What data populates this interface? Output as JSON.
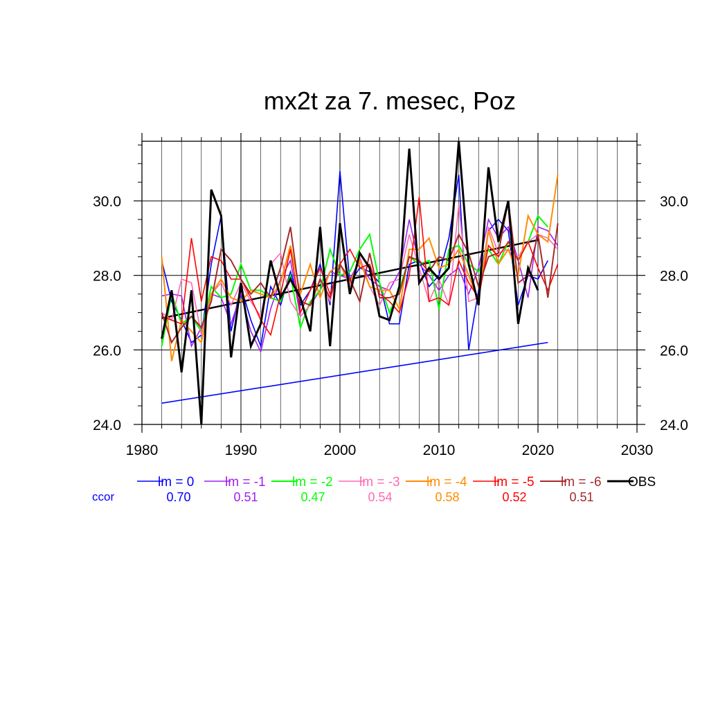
{
  "chart_data": {
    "type": "line",
    "title": "mx2t za 7. mesec, Poz",
    "xlabel": "",
    "ylabel": "",
    "xlim": [
      1980,
      2030
    ],
    "ylim": [
      24.0,
      31.6
    ],
    "x_ticks": [
      1980,
      1990,
      2000,
      2010,
      2020,
      2030
    ],
    "x_tick_labels": [
      "1980",
      "1990",
      "2000",
      "2010",
      "2020",
      "2030"
    ],
    "y_ticks": [
      24.0,
      26.0,
      28.0,
      30.0
    ],
    "y_tick_labels": [
      "24.0",
      "26.0",
      "28.0",
      "30.0"
    ],
    "y_labels_both_sides": true,
    "grid": true,
    "legend_placement": "below",
    "ccor_label": "ccor",
    "ccor_color": "#0000ff",
    "series": [
      {
        "name": "lm = 0",
        "color": "#0000ff",
        "width": 1.6,
        "ccor": "0.70",
        "x0": 1982,
        "values": [
          28.4,
          27.3,
          26.8,
          26.2,
          26.4,
          28.3,
          29.6,
          26.5,
          27.7,
          26.8,
          26.1,
          27.7,
          27.2,
          28.1,
          27.2,
          27.6,
          28.3,
          27.2,
          30.8,
          27.8,
          28.2,
          28.1,
          27.8,
          26.7,
          26.7,
          28.3,
          28.4,
          27.7,
          28.0,
          29.0,
          30.7,
          26.0,
          27.6,
          29.2,
          29.5,
          29.2,
          27.2,
          28.0,
          27.9,
          28.4
        ]
      },
      {
        "name": "lm = -1",
        "color": "#a020f0",
        "width": 1.6,
        "ccor": "0.51",
        "x0": 1982,
        "values": [
          27.45,
          27.5,
          27.45,
          26.1,
          26.6,
          27.5,
          27.4,
          26.7,
          27.5,
          26.5,
          25.95,
          27.1,
          27.9,
          28.4,
          26.9,
          27.2,
          27.6,
          28.1,
          28.0,
          27.9,
          28.4,
          27.9,
          27.7,
          27.6,
          28.1,
          29.5,
          28.3,
          28.0,
          27.6,
          28.0,
          28.2,
          27.5,
          28.2,
          29.5,
          29.0,
          29.3,
          28.4,
          27.4,
          29.3,
          29.2,
          28.8
        ]
      },
      {
        "name": "lm = -2",
        "color": "#00ff00",
        "width": 2.0,
        "ccor": "0.47",
        "x0": 1982,
        "values": [
          26.1,
          27.5,
          26.7,
          26.9,
          26.5,
          27.7,
          27.4,
          27.5,
          28.3,
          27.6,
          27.6,
          27.4,
          27.3,
          28.0,
          26.6,
          27.3,
          27.6,
          28.7,
          28.0,
          28.1,
          28.7,
          29.1,
          27.8,
          27.0,
          27.6,
          28.5,
          28.3,
          28.4,
          27.1,
          28.7,
          28.8,
          28.3,
          28.1,
          28.7,
          28.3,
          28.9,
          28.4,
          28.9,
          29.6,
          29.3
        ]
      },
      {
        "name": "lm = -3",
        "color": "#ff69b4",
        "width": 1.6,
        "ccor": "0.54",
        "x0": 1982,
        "values": [
          27.0,
          26.8,
          27.9,
          27.8,
          26.4,
          27.5,
          27.8,
          27.2,
          27.8,
          27.3,
          26.9,
          28.3,
          28.6,
          27.3,
          26.9,
          27.2,
          27.9,
          27.3,
          28.3,
          27.7,
          28.5,
          27.7,
          27.2,
          27.8,
          27.9,
          29.1,
          28.2,
          27.3,
          27.9,
          27.2,
          29.9,
          27.3,
          27.4,
          29.3,
          28.6,
          28.7,
          28.5,
          28.9,
          29.1,
          29.0,
          28.7
        ]
      },
      {
        "name": "lm = -4",
        "color": "#ff8c00",
        "width": 2.0,
        "ccor": "0.58",
        "x0": 1982,
        "values": [
          28.5,
          25.7,
          26.8,
          26.5,
          26.2,
          27.5,
          27.9,
          27.4,
          27.3,
          27.6,
          27.5,
          27.4,
          27.8,
          28.8,
          27.5,
          28.3,
          27.4,
          28.1,
          28.3,
          27.8,
          28.4,
          27.7,
          27.6,
          27.6,
          27.1,
          28.7,
          28.7,
          29.0,
          28.2,
          28.3,
          28.7,
          28.0,
          27.3,
          29.2,
          28.3,
          28.7,
          28.0,
          29.6,
          29.1,
          28.9,
          30.7
        ]
      },
      {
        "name": "lm = -5",
        "color": "#ff0000",
        "width": 1.6,
        "ccor": "0.52",
        "x0": 1982,
        "values": [
          26.9,
          26.8,
          26.7,
          29.0,
          27.3,
          28.5,
          28.4,
          27.9,
          27.9,
          27.4,
          26.8,
          26.4,
          27.5,
          28.7,
          27.0,
          27.6,
          28.2,
          27.5,
          28.3,
          28.7,
          28.2,
          28.3,
          27.5,
          27.3,
          27.0,
          28.0,
          30.1,
          27.3,
          27.4,
          27.2,
          28.4,
          27.8,
          27.4,
          28.8,
          28.5,
          28.9,
          28.4,
          28.9,
          28.2,
          27.6,
          28.3
        ]
      },
      {
        "name": "lm = -6",
        "color": "#a52a2a",
        "width": 2.0,
        "ccor": "0.51",
        "x0": 1982,
        "values": [
          27.0,
          26.2,
          26.6,
          26.9,
          26.6,
          27.3,
          28.7,
          28.4,
          27.9,
          27.5,
          27.8,
          27.4,
          28.2,
          29.3,
          27.3,
          27.2,
          27.9,
          27.4,
          28.3,
          27.9,
          27.3,
          28.6,
          27.4,
          27.4,
          27.5,
          28.5,
          28.4,
          28.1,
          28.5,
          28.4,
          29.1,
          28.6,
          27.7,
          28.5,
          28.6,
          30.0,
          27.8,
          28.0,
          29.1,
          27.4,
          29.4
        ]
      },
      {
        "name": "OBS",
        "color": "#000000",
        "width": 3.0,
        "ccor": "",
        "x0": 1982,
        "values": [
          26.3,
          27.6,
          25.4,
          27.6,
          24.0,
          30.3,
          29.6,
          25.8,
          27.8,
          26.1,
          26.7,
          28.4,
          27.4,
          27.9,
          27.4,
          26.5,
          29.3,
          26.1,
          29.4,
          27.5,
          28.6,
          28.2,
          26.9,
          26.8,
          27.7,
          31.4,
          27.8,
          28.2,
          27.9,
          28.2,
          31.6,
          28.3,
          27.2,
          30.9,
          28.9,
          30.0,
          26.7,
          28.2,
          27.6
        ]
      }
    ],
    "trend_lines": [
      {
        "name": "OBS trend",
        "color": "#000000",
        "width": 2.5,
        "x": [
          1982,
          2020
        ],
        "y": [
          26.85,
          28.95
        ]
      },
      {
        "name": "lm = 0 trend",
        "color": "#0000ff",
        "width": 1.6,
        "x": [
          1982,
          2021
        ],
        "y": [
          24.57,
          26.2
        ]
      }
    ]
  }
}
